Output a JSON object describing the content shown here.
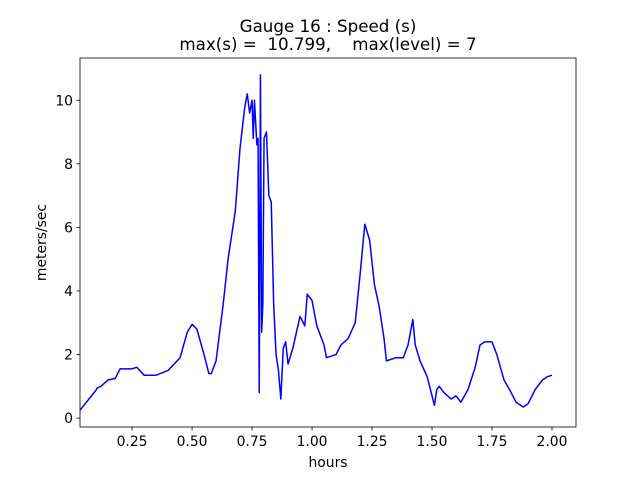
{
  "chart_data": {
    "type": "line",
    "title": "Gauge 16 : Speed (s)",
    "subtitle": "max(s) =  10.799,    max(level) = 7",
    "x_label": "hours",
    "y_label": "meters/sec",
    "xlim": [
      0.033,
      2.1
    ],
    "ylim": [
      -0.28,
      11.33
    ],
    "xticks": [
      0.25,
      {
        "value": 0.5,
        "label": "0.50"
      },
      0.75,
      {
        "value": 1,
        "label": "1.00"
      },
      1.25,
      {
        "value": 1.5,
        "label": "1.50"
      },
      1.75,
      {
        "value": 2,
        "label": "2.00"
      }
    ],
    "yticks": [
      0,
      2,
      4,
      6,
      8,
      10
    ],
    "grid": false,
    "x": [
      0.033,
      0.1,
      0.105,
      0.12,
      0.15,
      0.18,
      0.2,
      0.25,
      0.27,
      0.3,
      0.35,
      0.4,
      0.45,
      0.48,
      0.5,
      0.52,
      0.55,
      0.57,
      0.58,
      0.6,
      0.63,
      0.65,
      0.68,
      0.7,
      0.72,
      0.73,
      0.74,
      0.75,
      0.755,
      0.76,
      0.77,
      0.775,
      0.78,
      0.785,
      0.79,
      0.795,
      0.8,
      0.81,
      0.82,
      0.83,
      0.84,
      0.85,
      0.86,
      0.87,
      0.88,
      0.89,
      0.9,
      0.92,
      0.95,
      0.97,
      0.98,
      1.0,
      1.02,
      1.05,
      1.06,
      1.1,
      1.12,
      1.15,
      1.18,
      1.2,
      1.22,
      1.24,
      1.26,
      1.28,
      1.3,
      1.31,
      1.35,
      1.38,
      1.4,
      1.42,
      1.43,
      1.45,
      1.48,
      1.5,
      1.51,
      1.52,
      1.53,
      1.55,
      1.58,
      1.6,
      1.62,
      1.65,
      1.68,
      1.7,
      1.72,
      1.75,
      1.77,
      1.8,
      1.83,
      1.85,
      1.88,
      1.9,
      1.93,
      1.96,
      1.98,
      2.0
    ],
    "series": [
      {
        "name": "speed",
        "color": "#0000ff",
        "values": [
          0.25,
          0.88,
          0.95,
          1.0,
          1.2,
          1.25,
          1.55,
          1.55,
          1.6,
          1.35,
          1.35,
          1.5,
          1.9,
          2.7,
          2.95,
          2.8,
          2.0,
          1.4,
          1.4,
          1.8,
          3.6,
          5.0,
          6.5,
          8.5,
          9.8,
          10.2,
          9.6,
          10.0,
          8.8,
          10.0,
          8.6,
          8.8,
          0.8,
          10.8,
          2.7,
          3.6,
          8.8,
          9.0,
          7.0,
          6.8,
          3.6,
          2.0,
          1.5,
          0.6,
          2.2,
          2.4,
          1.7,
          2.2,
          3.2,
          2.9,
          3.9,
          3.7,
          2.9,
          2.3,
          1.9,
          2.0,
          2.3,
          2.5,
          3.0,
          4.5,
          6.1,
          5.6,
          4.2,
          3.5,
          2.5,
          1.8,
          1.9,
          1.9,
          2.3,
          3.1,
          2.3,
          1.8,
          1.3,
          0.7,
          0.4,
          0.9,
          1.0,
          0.8,
          0.6,
          0.7,
          0.5,
          0.9,
          1.6,
          2.3,
          2.4,
          2.4,
          2.0,
          1.2,
          0.8,
          0.5,
          0.35,
          0.45,
          0.9,
          1.2,
          1.3,
          1.35
        ]
      }
    ]
  }
}
